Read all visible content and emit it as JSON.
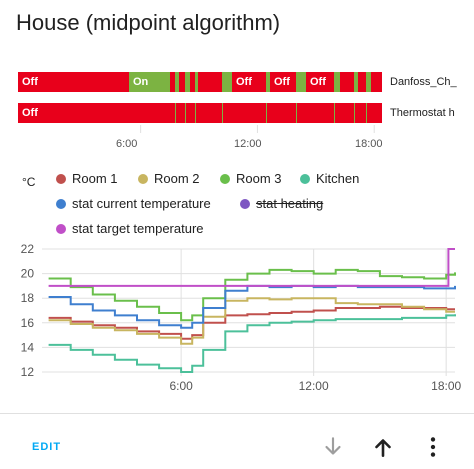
{
  "card": {
    "title": "House (midpoint algorithm)",
    "edit_label": "EDIT"
  },
  "timeline": {
    "colors": {
      "on": "#7cb342",
      "off": "#e8001b"
    },
    "rows": [
      {
        "label": "Danfoss_Ch_",
        "segments": [
          {
            "state": "off",
            "start": 0,
            "end": 111,
            "label": "Off"
          },
          {
            "state": "on",
            "start": 111,
            "end": 152,
            "label": "On"
          },
          {
            "state": "off",
            "start": 152,
            "end": 157
          },
          {
            "state": "on",
            "start": 157,
            "end": 161
          },
          {
            "state": "off",
            "start": 161,
            "end": 167
          },
          {
            "state": "on",
            "start": 167,
            "end": 172
          },
          {
            "state": "off",
            "start": 172,
            "end": 177
          },
          {
            "state": "on",
            "start": 177,
            "end": 180
          },
          {
            "state": "off",
            "start": 180,
            "end": 204
          },
          {
            "state": "on",
            "start": 204,
            "end": 214
          },
          {
            "state": "off",
            "start": 214,
            "end": 248,
            "label": "Off"
          },
          {
            "state": "on",
            "start": 248,
            "end": 252
          },
          {
            "state": "off",
            "start": 252,
            "end": 278,
            "label": "Off"
          },
          {
            "state": "on",
            "start": 278,
            "end": 288
          },
          {
            "state": "off",
            "start": 288,
            "end": 316,
            "label": "Off"
          },
          {
            "state": "on",
            "start": 316,
            "end": 322
          },
          {
            "state": "off",
            "start": 322,
            "end": 336
          },
          {
            "state": "on",
            "start": 336,
            "end": 340
          },
          {
            "state": "off",
            "start": 340,
            "end": 348
          },
          {
            "state": "on",
            "start": 348,
            "end": 353
          },
          {
            "state": "off",
            "start": 353,
            "end": 364
          }
        ]
      },
      {
        "label": "Thermostat h",
        "segments": [
          {
            "state": "off",
            "start": 0,
            "end": 364,
            "label": "Off"
          },
          {
            "state": "on",
            "start": 157,
            "end": 158
          },
          {
            "state": "on",
            "start": 167,
            "end": 168
          },
          {
            "state": "on",
            "start": 177,
            "end": 178
          },
          {
            "state": "on",
            "start": 204,
            "end": 205
          },
          {
            "state": "on",
            "start": 248,
            "end": 249
          },
          {
            "state": "on",
            "start": 278,
            "end": 279
          },
          {
            "state": "on",
            "start": 316,
            "end": 317
          },
          {
            "state": "on",
            "start": 336,
            "end": 337
          },
          {
            "state": "on",
            "start": 348,
            "end": 349
          }
        ]
      }
    ],
    "x_ticks": [
      "6:00",
      "12:00",
      "18:00"
    ]
  },
  "chart_data": {
    "type": "line",
    "unit": "°C",
    "ylim": [
      12,
      22
    ],
    "y_ticks": [
      "22",
      "20",
      "18",
      "16",
      "14",
      "12"
    ],
    "x_ticks": [
      "6:00",
      "12:00",
      "18:00"
    ],
    "xlim_hours": [
      -0.3,
      18.4
    ],
    "grid": true,
    "legend_position": "top",
    "series": [
      {
        "name": "Room 1",
        "color": "#c0504d",
        "x": [
          0,
          1,
          2,
          3,
          4,
          5,
          6,
          6.5,
          7,
          8,
          9,
          10,
          11,
          12,
          13,
          14,
          15,
          16,
          17,
          18,
          18.4
        ],
        "y": [
          16.4,
          16.1,
          15.8,
          15.6,
          15.3,
          15.1,
          14.7,
          15.0,
          16.0,
          16.6,
          16.7,
          16.8,
          16.9,
          17.0,
          17.2,
          17.2,
          17.3,
          17.2,
          17.2,
          17.1,
          17.1
        ]
      },
      {
        "name": "Room 2",
        "color": "#c8b560",
        "x": [
          0,
          1,
          2,
          3,
          4,
          5,
          6,
          6.5,
          7,
          8,
          9,
          10,
          11,
          12,
          13,
          14,
          15,
          16,
          17,
          18,
          18.4
        ],
        "y": [
          16.2,
          15.9,
          15.6,
          15.4,
          15.1,
          14.8,
          14.3,
          14.8,
          16.5,
          17.8,
          18.0,
          17.9,
          18.0,
          18.0,
          17.6,
          17.5,
          17.5,
          17.3,
          17.1,
          16.9,
          16.9
        ]
      },
      {
        "name": "Room 3",
        "color": "#6abf4b",
        "x": [
          0,
          1,
          2,
          3,
          4,
          5,
          6,
          6.5,
          7,
          8,
          9,
          10,
          11,
          12,
          13,
          14,
          15,
          16,
          17,
          18,
          18.4
        ],
        "y": [
          19.6,
          18.9,
          18.3,
          17.8,
          17.3,
          16.8,
          16.2,
          16.6,
          18.0,
          19.5,
          20.0,
          20.3,
          20.2,
          20.0,
          20.3,
          20.2,
          19.8,
          19.7,
          19.6,
          19.9,
          20.1
        ]
      },
      {
        "name": "Kitchen",
        "color": "#4cc09a",
        "x": [
          0,
          1,
          2,
          3,
          4,
          5,
          6,
          6.5,
          7,
          8,
          9,
          10,
          11,
          12,
          13,
          14,
          15,
          16,
          17,
          18,
          18.4
        ],
        "y": [
          14.2,
          13.8,
          13.4,
          13.0,
          12.6,
          12.3,
          12.0,
          12.5,
          13.8,
          15.3,
          15.8,
          16.0,
          16.1,
          16.2,
          16.3,
          16.3,
          16.3,
          16.4,
          16.4,
          16.6,
          16.7
        ]
      },
      {
        "name": "stat current temperature",
        "color": "#3f7fcf",
        "x": [
          0,
          1,
          2,
          3,
          4,
          5,
          6,
          6.5,
          7,
          8,
          9,
          10,
          11,
          12,
          13,
          14,
          15,
          16,
          17,
          18,
          18.4
        ],
        "y": [
          18.1,
          17.5,
          17.0,
          16.6,
          16.2,
          15.8,
          15.6,
          16.0,
          17.2,
          18.6,
          19.0,
          18.9,
          19.0,
          18.9,
          19.0,
          18.9,
          18.9,
          18.9,
          18.8,
          18.8,
          19.0
        ]
      },
      {
        "name": "stat heating",
        "color": "#7e57c2",
        "hidden": true,
        "x": [],
        "y": []
      },
      {
        "name": "stat target temperature",
        "color": "#c04fc8",
        "x": [
          0,
          18.1,
          18.1,
          18.4
        ],
        "y": [
          19.0,
          19.0,
          22.0,
          22.0
        ]
      }
    ]
  },
  "legend": {
    "items": [
      {
        "name": "Room 1",
        "color": "#c0504d"
      },
      {
        "name": "Room 2",
        "color": "#c8b560"
      },
      {
        "name": "Room 3",
        "color": "#6abf4b"
      },
      {
        "name": "Kitchen",
        "color": "#4cc09a"
      },
      {
        "name": "stat current temperature",
        "color": "#3f7fcf"
      },
      {
        "name": "stat heating",
        "color": "#7e57c2",
        "hidden": true
      },
      {
        "name": "stat target temperature",
        "color": "#c04fc8"
      }
    ]
  },
  "actions": {
    "icons": [
      "arrow-down-icon",
      "arrow-up-icon",
      "more-vertical-icon"
    ]
  }
}
